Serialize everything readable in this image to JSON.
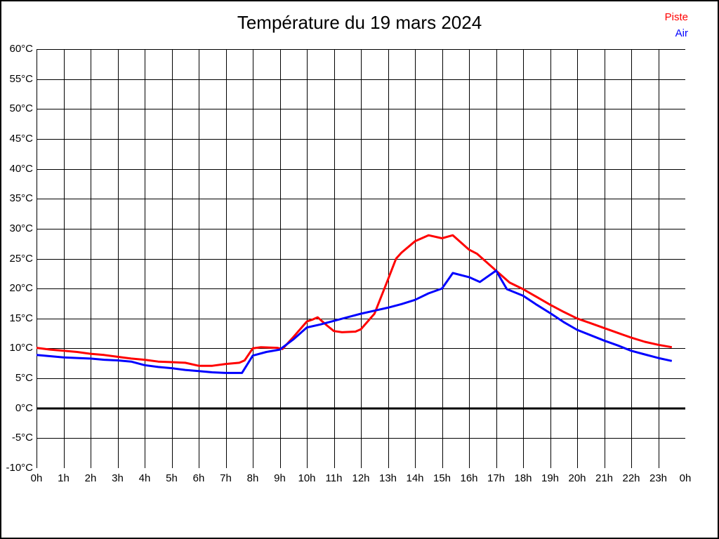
{
  "page": {
    "background": "#ffffff",
    "border_color": "#000000"
  },
  "header": {
    "title": "Température du 19 mars 2024"
  },
  "legend": {
    "position": "top-right",
    "items": [
      {
        "label": "Piste",
        "color": "#ff0000"
      },
      {
        "label": "Air",
        "color": "#0000ff"
      }
    ]
  },
  "chart_data": {
    "type": "line",
    "title": "Température du 19 mars 2024",
    "xlabel": "",
    "ylabel": "",
    "x_unit": "hours",
    "xlim": [
      0,
      24
    ],
    "ylim": [
      -10,
      60
    ],
    "grid": true,
    "grid_color": "#000000",
    "x_ticklabels": [
      "0h",
      "1h",
      "2h",
      "3h",
      "4h",
      "5h",
      "6h",
      "7h",
      "8h",
      "9h",
      "10h",
      "11h",
      "12h",
      "13h",
      "14h",
      "15h",
      "16h",
      "17h",
      "18h",
      "19h",
      "20h",
      "21h",
      "22h",
      "23h",
      "0h"
    ],
    "y_ticks": [
      60,
      55,
      50,
      45,
      40,
      35,
      30,
      25,
      20,
      15,
      10,
      5,
      0,
      -5,
      -10
    ],
    "y_ticklabels": [
      "60°C",
      "55°C",
      "50°C",
      "45°C",
      "40°C",
      "35°C",
      "30°C",
      "25°C",
      "20°C",
      "15°C",
      "10°C",
      "5°C",
      "0°C",
      "-5°C",
      "-10°C"
    ],
    "zero_line": {
      "value": 0,
      "color": "#000000",
      "width": 3
    },
    "series": [
      {
        "name": "Piste",
        "color": "#ff0000",
        "width": 3,
        "x": [
          0,
          0.5,
          1,
          1.5,
          2,
          2.5,
          3,
          3.5,
          4,
          4.5,
          5,
          5.5,
          6,
          6.5,
          7,
          7.5,
          7.7,
          8,
          8.3,
          8.9,
          9.1,
          9.5,
          10,
          10.2,
          10.4,
          10.75,
          11,
          11.3,
          11.8,
          12,
          12.5,
          13,
          13.3,
          13.5,
          14,
          14.5,
          15,
          15.4,
          16,
          16.3,
          17,
          17.5,
          18,
          18.5,
          19,
          19.5,
          20,
          20.5,
          21,
          21.5,
          22,
          22.5,
          23,
          23.5
        ],
        "y": [
          10.1,
          9.8,
          9.6,
          9.4,
          9.1,
          8.9,
          8.6,
          8.3,
          8.1,
          7.8,
          7.7,
          7.6,
          7.1,
          7.1,
          7.4,
          7.6,
          8.0,
          10.0,
          10.2,
          10.1,
          9.9,
          11.9,
          14.5,
          14.8,
          15.2,
          13.8,
          12.9,
          12.7,
          12.8,
          13.2,
          15.8,
          21.5,
          25.0,
          26.0,
          27.9,
          28.9,
          28.4,
          28.9,
          26.5,
          25.8,
          23.0,
          21.0,
          19.9,
          18.6,
          17.3,
          16.1,
          15.0,
          14.2,
          13.4,
          12.6,
          11.8,
          11.1,
          10.6,
          10.2
        ]
      },
      {
        "name": "Air",
        "color": "#0000ff",
        "width": 3,
        "x": [
          0,
          0.5,
          1,
          1.5,
          2,
          2.5,
          3,
          3.5,
          4,
          4.5,
          5,
          5.5,
          6,
          6.5,
          7,
          7.6,
          8,
          8.5,
          9,
          9.5,
          10,
          10.5,
          11,
          11.5,
          12,
          12.5,
          13,
          13.5,
          14,
          14.5,
          15,
          15.4,
          16,
          16.4,
          17,
          17.4,
          18,
          18.5,
          19,
          19.5,
          20,
          20.5,
          21,
          21.5,
          22,
          22.5,
          23,
          23.5
        ],
        "y": [
          8.9,
          8.7,
          8.5,
          8.4,
          8.3,
          8.1,
          8.0,
          7.8,
          7.2,
          6.9,
          6.7,
          6.4,
          6.2,
          6.0,
          5.9,
          5.9,
          8.8,
          9.4,
          9.8,
          11.5,
          13.5,
          14.0,
          14.6,
          15.2,
          15.8,
          16.3,
          16.8,
          17.4,
          18.1,
          19.2,
          20.0,
          22.6,
          21.9,
          21.1,
          23.0,
          19.9,
          18.8,
          17.3,
          15.9,
          14.4,
          13.1,
          12.2,
          11.3,
          10.5,
          9.6,
          9.0,
          8.4,
          7.9
        ]
      }
    ]
  }
}
